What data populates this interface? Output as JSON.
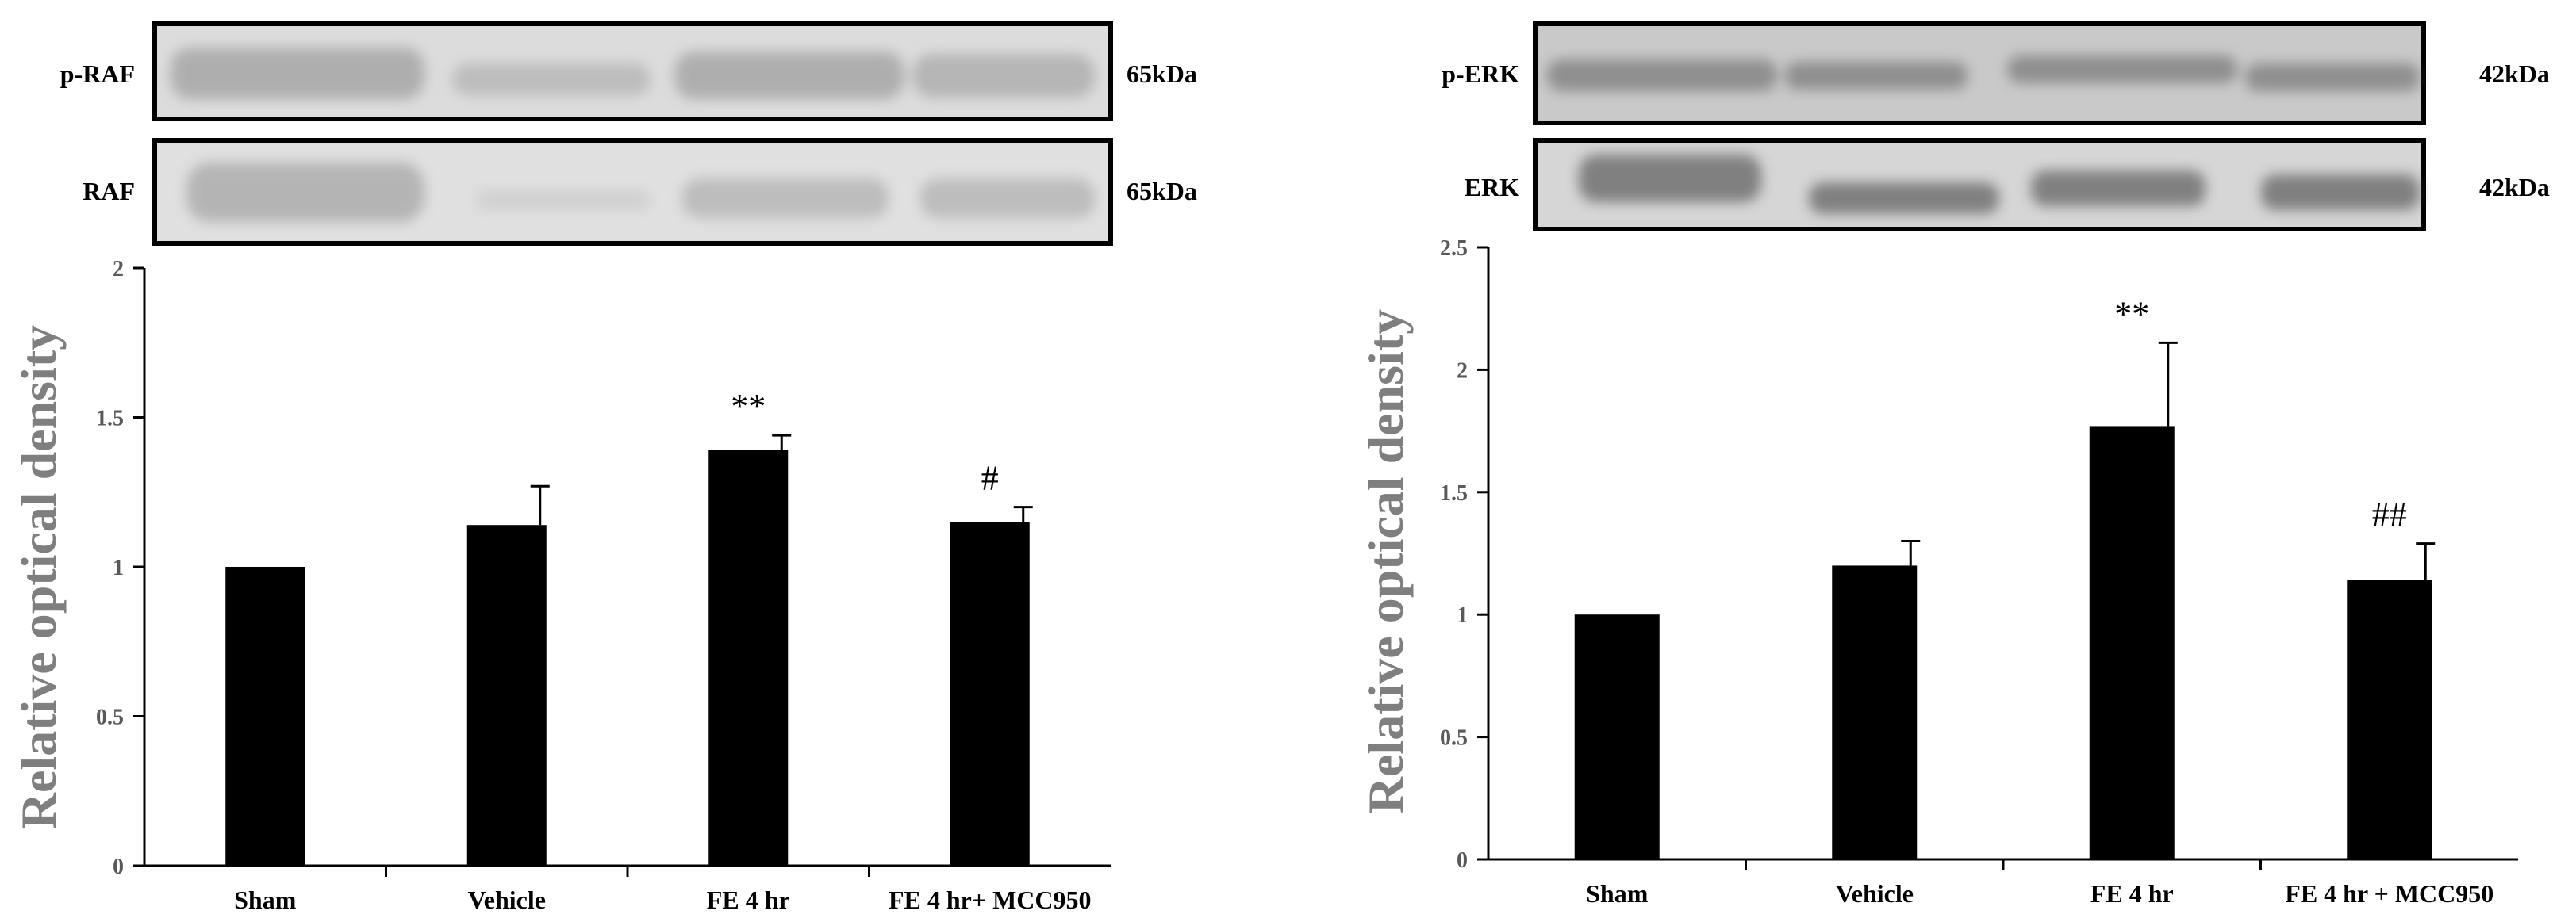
{
  "chart_data": [
    {
      "type": "bar",
      "blots": [
        {
          "label": "p-RAF",
          "size": "65kDa"
        },
        {
          "label": "RAF",
          "size": "65kDa"
        }
      ],
      "categories": [
        "Sham",
        "Vehicle",
        "FE 4 hr",
        "FE 4 hr+ MCC950"
      ],
      "values": [
        1.0,
        1.14,
        1.39,
        1.15
      ],
      "errors": [
        0.0,
        0.13,
        0.05,
        0.05
      ],
      "annotations": [
        "",
        "",
        "**",
        "#"
      ],
      "ylabel": "Relative optical density",
      "ylim": [
        0,
        2
      ],
      "yticks": [
        "0",
        "0.5",
        "1",
        "1.5",
        "2"
      ],
      "ytick_values": [
        0,
        0.5,
        1,
        1.5,
        2
      ],
      "bar_color": "#000000",
      "grid": false
    },
    {
      "type": "bar",
      "blots": [
        {
          "label": "p-ERK",
          "size": "42kDa"
        },
        {
          "label": "ERK",
          "size": "42kDa"
        }
      ],
      "categories": [
        "Sham",
        "Vehicle",
        "FE 4 hr",
        "FE 4 hr + MCC950"
      ],
      "values": [
        1.0,
        1.2,
        1.77,
        1.14
      ],
      "errors": [
        0.0,
        0.1,
        0.34,
        0.15
      ],
      "annotations": [
        "",
        "",
        "**",
        "##"
      ],
      "ylabel": "Relative optical density",
      "ylim": [
        0,
        2.5
      ],
      "yticks": [
        "0",
        "0.5",
        "1",
        "1.5",
        "2",
        "2.5"
      ],
      "ytick_values": [
        0,
        0.5,
        1,
        1.5,
        2,
        2.5
      ],
      "bar_color": "#000000",
      "grid": false
    }
  ]
}
